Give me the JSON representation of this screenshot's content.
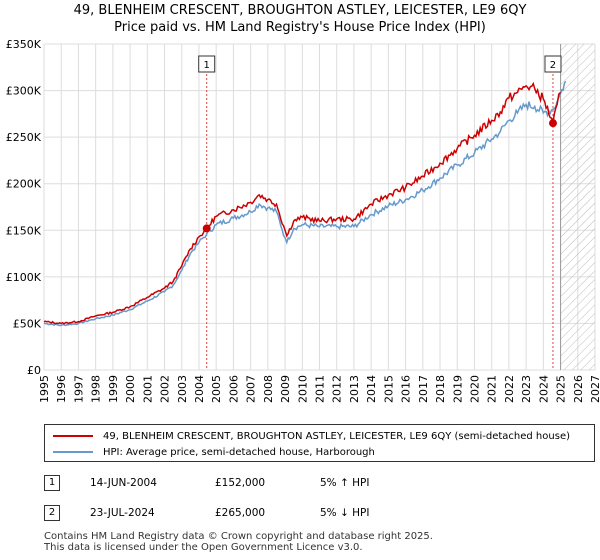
{
  "title_line1": "49, BLENHEIM CRESCENT, BROUGHTON ASTLEY, LEICESTER, LE9 6QY",
  "title_line2": "Price paid vs. HM Land Registry's House Price Index (HPI)",
  "chart_data": {
    "type": "line",
    "xlim": [
      1995,
      2027
    ],
    "ylim": [
      0,
      350000
    ],
    "x_ticks": [
      "1995",
      "1996",
      "1997",
      "1998",
      "1999",
      "2000",
      "2001",
      "2002",
      "2003",
      "2004",
      "2005",
      "2006",
      "2007",
      "2008",
      "2009",
      "2010",
      "2011",
      "2012",
      "2013",
      "2014",
      "2015",
      "2016",
      "2017",
      "2018",
      "2019",
      "2020",
      "2021",
      "2022",
      "2023",
      "2024",
      "2025",
      "2026",
      "2027"
    ],
    "y_ticks": [
      {
        "value": 0,
        "label": "£0"
      },
      {
        "value": 50000,
        "label": "£50K"
      },
      {
        "value": 100000,
        "label": "£100K"
      },
      {
        "value": 150000,
        "label": "£150K"
      },
      {
        "value": 200000,
        "label": "£200K"
      },
      {
        "value": 250000,
        "label": "£250K"
      },
      {
        "value": 300000,
        "label": "£300K"
      },
      {
        "value": 350000,
        "label": "£350K"
      }
    ],
    "grid": true,
    "forecast_start": 2025.0,
    "series": [
      {
        "name": "49, BLENHEIM CRESCENT, BROUGHTON ASTLEY, LEICESTER, LE9 6QY (semi-detached house)",
        "color": "#cc0000",
        "x": [
          1995,
          1996,
          1997,
          1998,
          1999,
          2000,
          2001,
          2002,
          2002.5,
          2003,
          2003.5,
          2004,
          2004.45,
          2005,
          2006,
          2007,
          2007.5,
          2008,
          2008.5,
          2009,
          2009.1,
          2009.5,
          2010,
          2011,
          2012,
          2013,
          2014,
          2015,
          2016,
          2017,
          2018,
          2019,
          2020,
          2021,
          2021.5,
          2022,
          2022.5,
          2023,
          2023.5,
          2024,
          2024.56,
          2024.8,
          2025
        ],
        "y": [
          52000,
          50000,
          52000,
          58000,
          62000,
          68000,
          78000,
          88000,
          95000,
          112000,
          130000,
          143000,
          152000,
          165000,
          172000,
          180000,
          188000,
          183000,
          178000,
          150000,
          144000,
          160000,
          164000,
          160000,
          162000,
          162000,
          178000,
          188000,
          196000,
          208000,
          222000,
          238000,
          252000,
          268000,
          277000,
          292000,
          298000,
          305000,
          302000,
          291000,
          265000,
          285000,
          298000
        ]
      },
      {
        "name": "HPI: Average price, semi-detached house, Harborough",
        "color": "#6699cc",
        "x": [
          1995,
          1996,
          1997,
          1998,
          1999,
          2000,
          2001,
          2002,
          2002.5,
          2003,
          2003.5,
          2004,
          2004.45,
          2005,
          2006,
          2007,
          2007.5,
          2008,
          2008.5,
          2009,
          2009.1,
          2009.5,
          2010,
          2011,
          2012,
          2013,
          2014,
          2015,
          2016,
          2017,
          2018,
          2019,
          2020,
          2021,
          2021.5,
          2022,
          2022.5,
          2023,
          2023.5,
          2024,
          2024.56,
          2024.8,
          2025,
          2025.3
        ],
        "y": [
          50000,
          48000,
          50000,
          55000,
          59000,
          65000,
          74000,
          84000,
          91000,
          107000,
          125000,
          137000,
          146000,
          156000,
          163000,
          170000,
          178000,
          174000,
          170000,
          142000,
          137000,
          152000,
          156000,
          154000,
          154000,
          154000,
          167000,
          176000,
          183000,
          193000,
          206000,
          220000,
          233000,
          248000,
          256000,
          268000,
          276000,
          285000,
          283000,
          276000,
          280000,
          288000,
          297000,
          310000
        ]
      }
    ],
    "annotations": [
      {
        "label": "1",
        "x": 2004.45,
        "y": 152000
      },
      {
        "label": "2",
        "x": 2024.56,
        "y": 265000
      }
    ]
  },
  "legend": {
    "red_label": "49, BLENHEIM CRESCENT, BROUGHTON ASTLEY, LEICESTER, LE9 6QY (semi-detached house)",
    "blue_label": "HPI: Average price, semi-detached house, Harborough"
  },
  "transactions": [
    {
      "num": "1",
      "date": "14-JUN-2004",
      "price": "£152,000",
      "hpi": "5% ↑ HPI"
    },
    {
      "num": "2",
      "date": "23-JUL-2024",
      "price": "£265,000",
      "hpi": "5% ↓ HPI"
    }
  ],
  "footer_line1": "Contains HM Land Registry data © Crown copyright and database right 2025.",
  "footer_line2": "This data is licensed under the Open Government Licence v3.0.",
  "colors": {
    "red": "#cc0000",
    "blue": "#6699cc",
    "grid": "#dddddd"
  }
}
